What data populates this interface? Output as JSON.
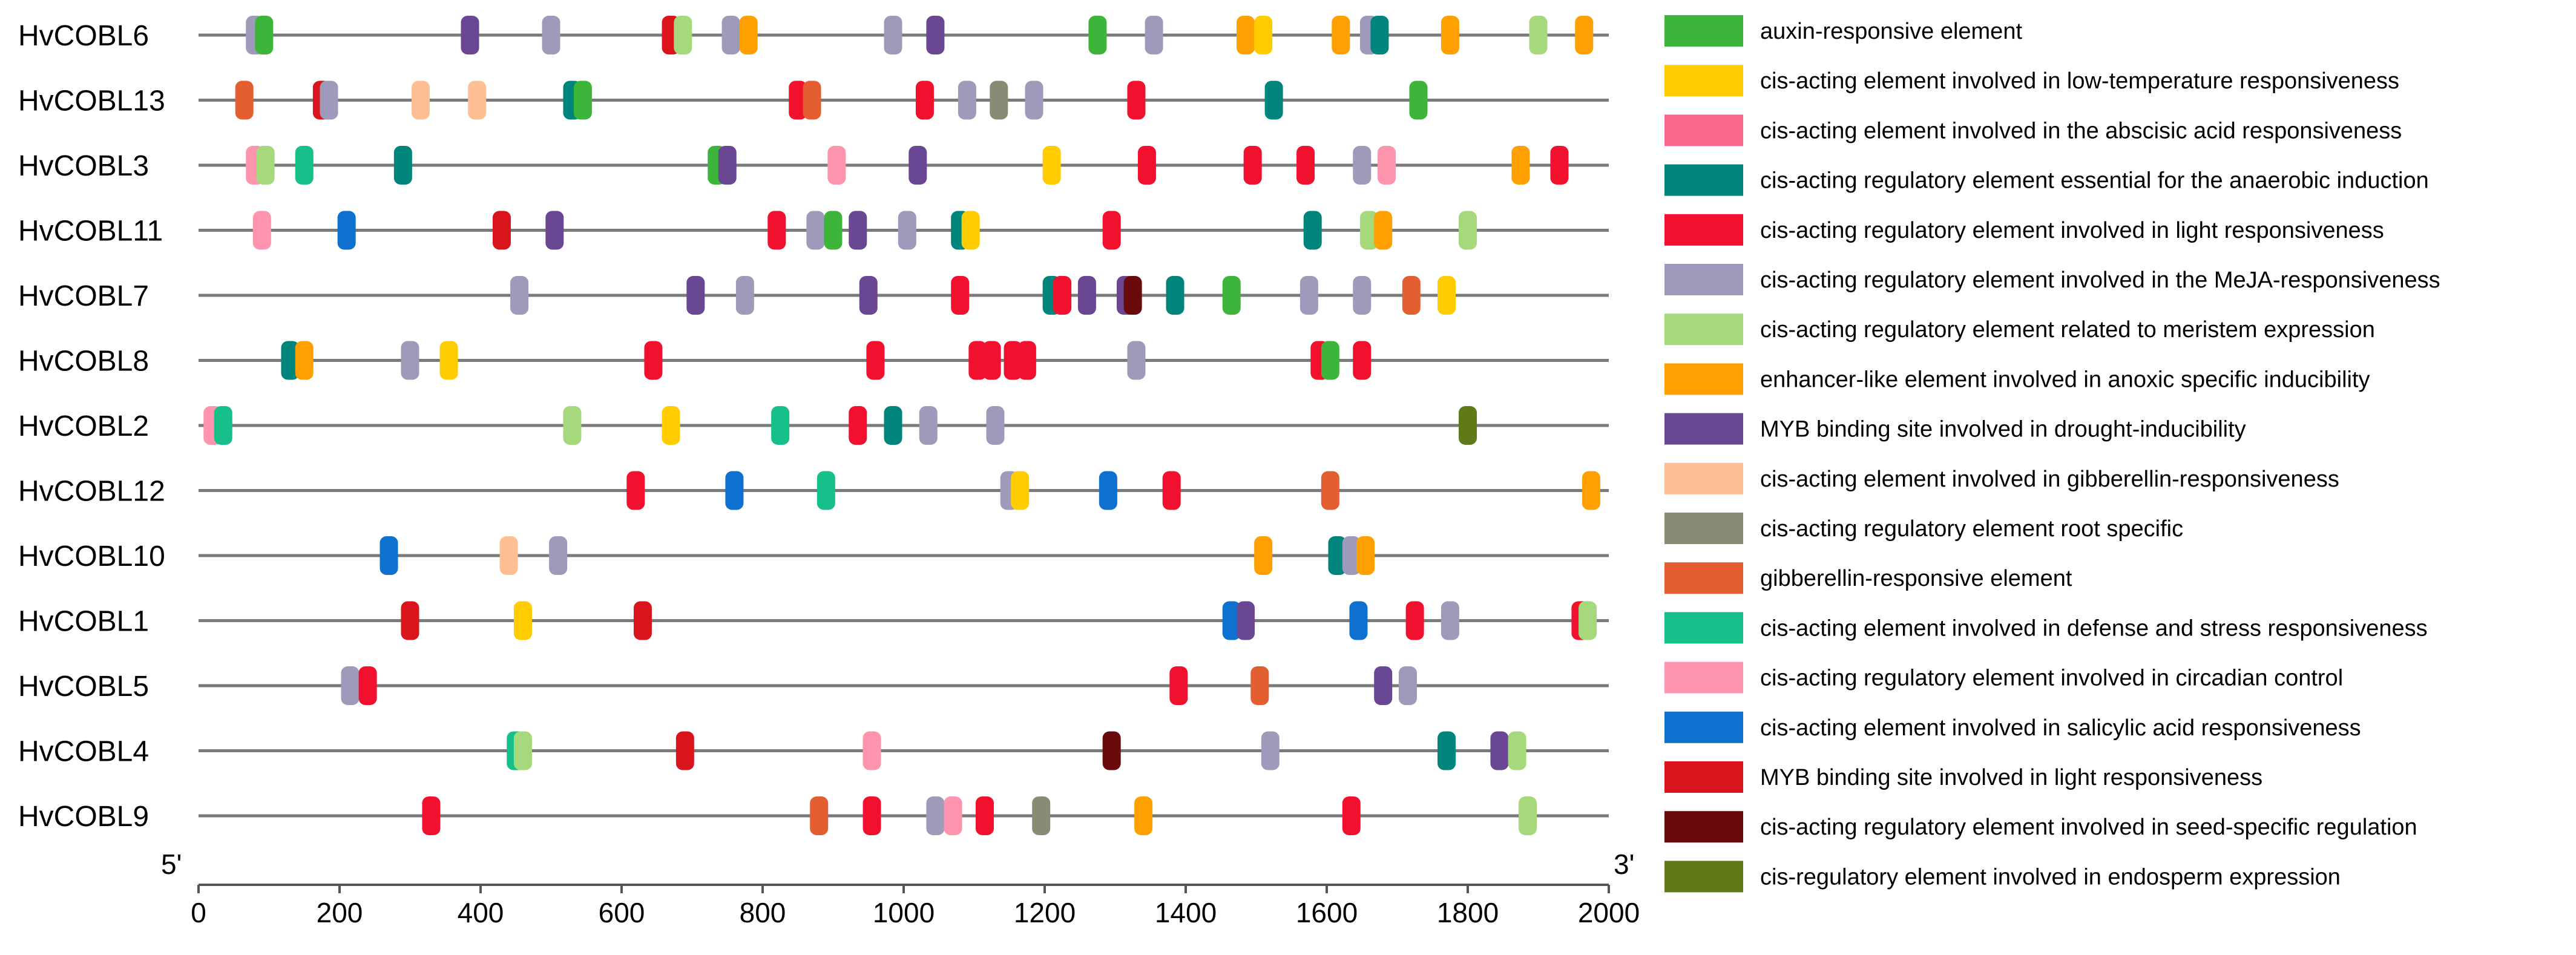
{
  "chart_data": {
    "type": "promoter-element-map",
    "xlim": [
      0,
      2000
    ],
    "x_ticks": [
      0,
      200,
      400,
      600,
      800,
      1000,
      1200,
      1400,
      1600,
      1800,
      2000
    ],
    "x_start_label": "5'",
    "x_end_label": "3'",
    "legend": [
      {
        "name": "auxin-responsive element",
        "color": "#3DB53A"
      },
      {
        "name": "cis-acting element involved in low-temperature responsiveness",
        "color": "#FFCC00"
      },
      {
        "name": "cis-acting element involved in the abscisic acid responsiveness",
        "color": "#F7688A"
      },
      {
        "name": "cis-acting regulatory element essential for the anaerobic induction",
        "color": "#00857C"
      },
      {
        "name": "cis-acting regulatory element involved in light responsiveness",
        "color": "#F2102F"
      },
      {
        "name": "cis-acting regulatory element involved in the MeJA-responsiveness",
        "color": "#9E9BBA"
      },
      {
        "name": "cis-acting regulatory element related to meristem expression",
        "color": "#A6D97C"
      },
      {
        "name": "enhancer-like element involved in anoxic specific inducibility",
        "color": "#FFA000"
      },
      {
        "name": "MYB binding site involved in drought-inducibility",
        "color": "#6A4793"
      },
      {
        "name": "cis-acting element involved in gibberellin-responsiveness",
        "color": "#FFBF94"
      },
      {
        "name": "cis-acting regulatory element root specific",
        "color": "#878C74"
      },
      {
        "name": "gibberellin-responsive element",
        "color": "#E35F31"
      },
      {
        "name": "cis-acting element involved in defense and stress responsiveness",
        "color": "#17BF8A"
      },
      {
        "name": "cis-acting regulatory element involved in circadian control",
        "color": "#FF94AE"
      },
      {
        "name": "cis-acting element involved in salicylic acid responsiveness",
        "color": "#0E70CF"
      },
      {
        "name": "MYB binding site involved in light responsiveness",
        "color": "#D9141C"
      },
      {
        "name": "cis-acting regulatory element involved in seed-specific regulation",
        "color": "#6B0A0D"
      },
      {
        "name": "cis-regulatory element involved in endosperm expression",
        "color": "#5E7A19"
      }
    ],
    "genes": [
      {
        "name": "HvCOBL6",
        "elements": [
          [
            80,
            5
          ],
          [
            93,
            0
          ],
          [
            385,
            8
          ],
          [
            500,
            5
          ],
          [
            670,
            15
          ],
          [
            687,
            6
          ],
          [
            755,
            5
          ],
          [
            780,
            7
          ],
          [
            985,
            5
          ],
          [
            1045,
            8
          ],
          [
            1275,
            0
          ],
          [
            1355,
            5
          ],
          [
            1485,
            7
          ],
          [
            1510,
            1
          ],
          [
            1620,
            7
          ],
          [
            1660,
            5
          ],
          [
            1675,
            3
          ],
          [
            1775,
            7
          ],
          [
            1900,
            6
          ],
          [
            1965,
            7
          ]
        ]
      },
      {
        "name": "HvCOBL13",
        "elements": [
          [
            65,
            11
          ],
          [
            175,
            15
          ],
          [
            185,
            5
          ],
          [
            315,
            9
          ],
          [
            395,
            9
          ],
          [
            530,
            3
          ],
          [
            545,
            0
          ],
          [
            850,
            4
          ],
          [
            870,
            11
          ],
          [
            1030,
            4
          ],
          [
            1090,
            5
          ],
          [
            1135,
            10
          ],
          [
            1185,
            5
          ],
          [
            1330,
            4
          ],
          [
            1525,
            3
          ],
          [
            1730,
            0
          ]
        ]
      },
      {
        "name": "HvCOBL3",
        "elements": [
          [
            80,
            13
          ],
          [
            95,
            6
          ],
          [
            150,
            12
          ],
          [
            290,
            3
          ],
          [
            735,
            0
          ],
          [
            750,
            8
          ],
          [
            905,
            13
          ],
          [
            1020,
            8
          ],
          [
            1210,
            1
          ],
          [
            1345,
            4
          ],
          [
            1495,
            4
          ],
          [
            1570,
            4
          ],
          [
            1650,
            5
          ],
          [
            1685,
            13
          ],
          [
            1875,
            7
          ],
          [
            1930,
            4
          ]
        ]
      },
      {
        "name": "HvCOBL11",
        "elements": [
          [
            90,
            13
          ],
          [
            210,
            14
          ],
          [
            430,
            15
          ],
          [
            505,
            8
          ],
          [
            820,
            4
          ],
          [
            875,
            5
          ],
          [
            900,
            0
          ],
          [
            935,
            8
          ],
          [
            1005,
            5
          ],
          [
            1080,
            3
          ],
          [
            1095,
            1
          ],
          [
            1295,
            4
          ],
          [
            1580,
            3
          ],
          [
            1660,
            6
          ],
          [
            1680,
            7
          ],
          [
            1800,
            6
          ]
        ]
      },
      {
        "name": "HvCOBL7",
        "elements": [
          [
            455,
            5
          ],
          [
            705,
            8
          ],
          [
            775,
            5
          ],
          [
            950,
            8
          ],
          [
            1080,
            4
          ],
          [
            1210,
            3
          ],
          [
            1225,
            4
          ],
          [
            1260,
            8
          ],
          [
            1315,
            8
          ],
          [
            1325,
            16
          ],
          [
            1385,
            3
          ],
          [
            1465,
            0
          ],
          [
            1575,
            5
          ],
          [
            1650,
            5
          ],
          [
            1720,
            11
          ],
          [
            1770,
            1
          ]
        ]
      },
      {
        "name": "HvCOBL8",
        "elements": [
          [
            130,
            3
          ],
          [
            150,
            7
          ],
          [
            300,
            5
          ],
          [
            355,
            1
          ],
          [
            645,
            4
          ],
          [
            960,
            4
          ],
          [
            1105,
            4
          ],
          [
            1125,
            4
          ],
          [
            1155,
            4
          ],
          [
            1175,
            4
          ],
          [
            1330,
            5
          ],
          [
            1590,
            4
          ],
          [
            1605,
            0
          ],
          [
            1650,
            4
          ]
        ]
      },
      {
        "name": "HvCOBL2",
        "elements": [
          [
            20,
            13
          ],
          [
            35,
            12
          ],
          [
            530,
            6
          ],
          [
            670,
            1
          ],
          [
            825,
            12
          ],
          [
            935,
            4
          ],
          [
            985,
            3
          ],
          [
            1035,
            5
          ],
          [
            1130,
            5
          ],
          [
            1800,
            17
          ]
        ]
      },
      {
        "name": "HvCOBL12",
        "elements": [
          [
            620,
            4
          ],
          [
            760,
            14
          ],
          [
            890,
            12
          ],
          [
            1150,
            5
          ],
          [
            1165,
            1
          ],
          [
            1290,
            14
          ],
          [
            1380,
            4
          ],
          [
            1605,
            11
          ],
          [
            1975,
            7
          ]
        ]
      },
      {
        "name": "HvCOBL10",
        "elements": [
          [
            270,
            14
          ],
          [
            440,
            9
          ],
          [
            510,
            5
          ],
          [
            1510,
            7
          ],
          [
            1615,
            3
          ],
          [
            1635,
            5
          ],
          [
            1655,
            7
          ]
        ]
      },
      {
        "name": "HvCOBL1",
        "elements": [
          [
            300,
            15
          ],
          [
            460,
            1
          ],
          [
            630,
            15
          ],
          [
            1465,
            14
          ],
          [
            1485,
            8
          ],
          [
            1645,
            14
          ],
          [
            1725,
            4
          ],
          [
            1775,
            5
          ],
          [
            1960,
            4
          ],
          [
            1970,
            6
          ]
        ]
      },
      {
        "name": "HvCOBL5",
        "elements": [
          [
            215,
            5
          ],
          [
            240,
            4
          ],
          [
            1390,
            4
          ],
          [
            1505,
            11
          ],
          [
            1680,
            8
          ],
          [
            1715,
            5
          ]
        ]
      },
      {
        "name": "HvCOBL4",
        "elements": [
          [
            450,
            12
          ],
          [
            460,
            6
          ],
          [
            690,
            15
          ],
          [
            955,
            13
          ],
          [
            1295,
            16
          ],
          [
            1520,
            5
          ],
          [
            1770,
            3
          ],
          [
            1845,
            8
          ],
          [
            1870,
            6
          ]
        ]
      },
      {
        "name": "HvCOBL9",
        "elements": [
          [
            330,
            4
          ],
          [
            880,
            11
          ],
          [
            955,
            4
          ],
          [
            1045,
            5
          ],
          [
            1070,
            13
          ],
          [
            1115,
            4
          ],
          [
            1195,
            10
          ],
          [
            1340,
            7
          ],
          [
            1635,
            4
          ],
          [
            1885,
            6
          ]
        ]
      }
    ]
  }
}
